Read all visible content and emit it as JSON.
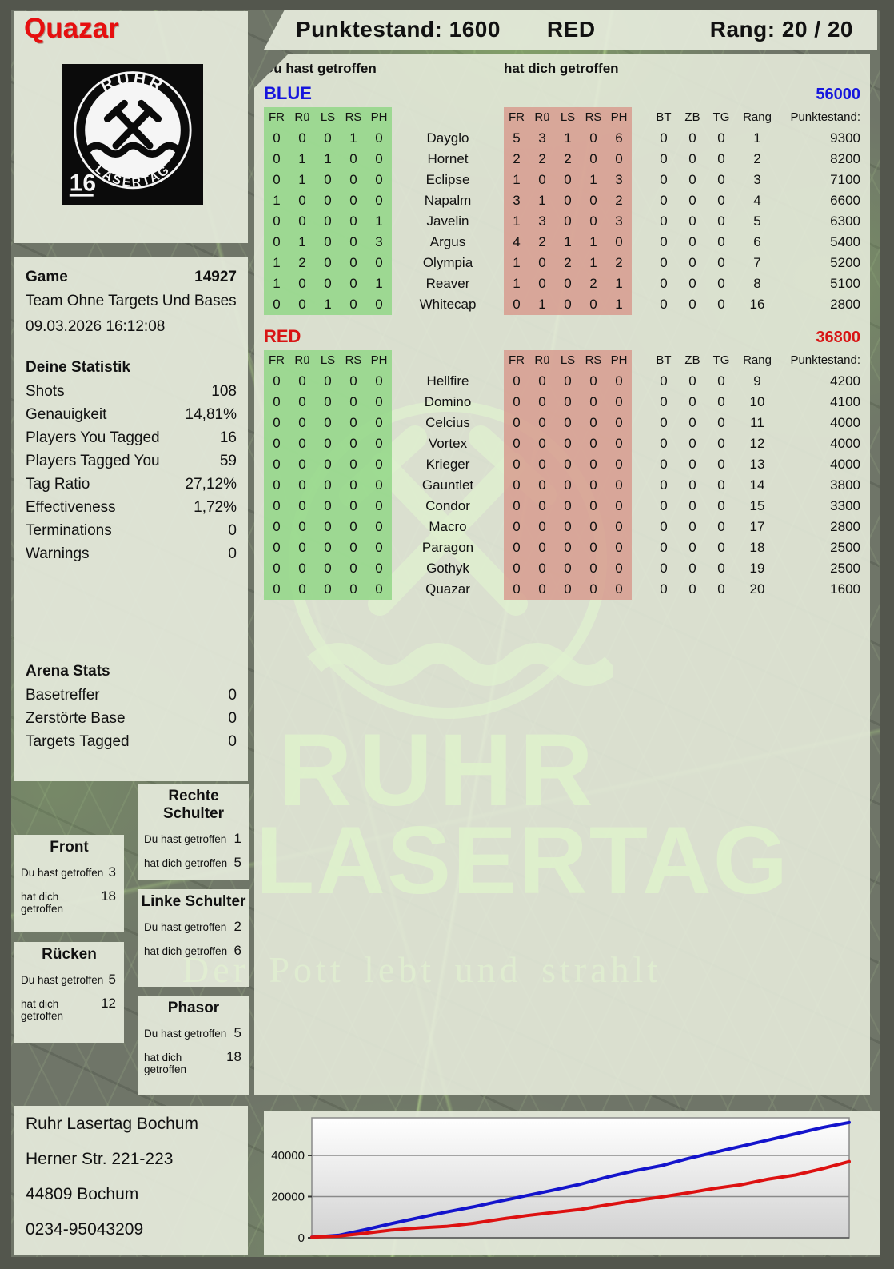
{
  "header": {
    "player": "Quazar",
    "punktestand": "Punktestand: 1600",
    "team": "RED",
    "rang": "Rang: 20 / 20"
  },
  "logo": {
    "arc_top": "RUHR",
    "arc_bottom": "LASERTAG",
    "badge": "16"
  },
  "table": {
    "you_hit_label": "Du hast getroffen",
    "hit_you_label": "hat dich getroffen",
    "hit_columns": [
      "FR",
      "Rü",
      "LS",
      "RS",
      "PH"
    ],
    "extra_columns": [
      "BT",
      "ZB",
      "TG",
      "Rang",
      "Punktestand:"
    ]
  },
  "teams": [
    {
      "name": "BLUE",
      "score": "56000",
      "color": "#1616dd",
      "players": [
        {
          "name": "Dayglo",
          "you": [
            0,
            0,
            0,
            1,
            0
          ],
          "them": [
            5,
            3,
            1,
            0,
            6
          ],
          "bt": 0,
          "zb": 0,
          "tg": 0,
          "rang": 1,
          "punkte": 9300
        },
        {
          "name": "Hornet",
          "you": [
            0,
            1,
            1,
            0,
            0
          ],
          "them": [
            2,
            2,
            2,
            0,
            0
          ],
          "bt": 0,
          "zb": 0,
          "tg": 0,
          "rang": 2,
          "punkte": 8200
        },
        {
          "name": "Eclipse",
          "you": [
            0,
            1,
            0,
            0,
            0
          ],
          "them": [
            1,
            0,
            0,
            1,
            3
          ],
          "bt": 0,
          "zb": 0,
          "tg": 0,
          "rang": 3,
          "punkte": 7100
        },
        {
          "name": "Napalm",
          "you": [
            1,
            0,
            0,
            0,
            0
          ],
          "them": [
            3,
            1,
            0,
            0,
            2
          ],
          "bt": 0,
          "zb": 0,
          "tg": 0,
          "rang": 4,
          "punkte": 6600
        },
        {
          "name": "Javelin",
          "you": [
            0,
            0,
            0,
            0,
            1
          ],
          "them": [
            1,
            3,
            0,
            0,
            3
          ],
          "bt": 0,
          "zb": 0,
          "tg": 0,
          "rang": 5,
          "punkte": 6300
        },
        {
          "name": "Argus",
          "you": [
            0,
            1,
            0,
            0,
            3
          ],
          "them": [
            4,
            2,
            1,
            1,
            0
          ],
          "bt": 0,
          "zb": 0,
          "tg": 0,
          "rang": 6,
          "punkte": 5400
        },
        {
          "name": "Olympia",
          "you": [
            1,
            2,
            0,
            0,
            0
          ],
          "them": [
            1,
            0,
            2,
            1,
            2
          ],
          "bt": 0,
          "zb": 0,
          "tg": 0,
          "rang": 7,
          "punkte": 5200
        },
        {
          "name": "Reaver",
          "you": [
            1,
            0,
            0,
            0,
            1
          ],
          "them": [
            1,
            0,
            0,
            2,
            1
          ],
          "bt": 0,
          "zb": 0,
          "tg": 0,
          "rang": 8,
          "punkte": 5100
        },
        {
          "name": "Whitecap",
          "you": [
            0,
            0,
            1,
            0,
            0
          ],
          "them": [
            0,
            1,
            0,
            0,
            1
          ],
          "bt": 0,
          "zb": 0,
          "tg": 0,
          "rang": 16,
          "punkte": 2800
        }
      ]
    },
    {
      "name": "RED",
      "score": "36800",
      "color": "#d81414",
      "players": [
        {
          "name": "Hellfire",
          "you": [
            0,
            0,
            0,
            0,
            0
          ],
          "them": [
            0,
            0,
            0,
            0,
            0
          ],
          "bt": 0,
          "zb": 0,
          "tg": 0,
          "rang": 9,
          "punkte": 4200
        },
        {
          "name": "Domino",
          "you": [
            0,
            0,
            0,
            0,
            0
          ],
          "them": [
            0,
            0,
            0,
            0,
            0
          ],
          "bt": 0,
          "zb": 0,
          "tg": 0,
          "rang": 10,
          "punkte": 4100
        },
        {
          "name": "Celcius",
          "you": [
            0,
            0,
            0,
            0,
            0
          ],
          "them": [
            0,
            0,
            0,
            0,
            0
          ],
          "bt": 0,
          "zb": 0,
          "tg": 0,
          "rang": 11,
          "punkte": 4000
        },
        {
          "name": "Vortex",
          "you": [
            0,
            0,
            0,
            0,
            0
          ],
          "them": [
            0,
            0,
            0,
            0,
            0
          ],
          "bt": 0,
          "zb": 0,
          "tg": 0,
          "rang": 12,
          "punkte": 4000
        },
        {
          "name": "Krieger",
          "you": [
            0,
            0,
            0,
            0,
            0
          ],
          "them": [
            0,
            0,
            0,
            0,
            0
          ],
          "bt": 0,
          "zb": 0,
          "tg": 0,
          "rang": 13,
          "punkte": 4000
        },
        {
          "name": "Gauntlet",
          "you": [
            0,
            0,
            0,
            0,
            0
          ],
          "them": [
            0,
            0,
            0,
            0,
            0
          ],
          "bt": 0,
          "zb": 0,
          "tg": 0,
          "rang": 14,
          "punkte": 3800
        },
        {
          "name": "Condor",
          "you": [
            0,
            0,
            0,
            0,
            0
          ],
          "them": [
            0,
            0,
            0,
            0,
            0
          ],
          "bt": 0,
          "zb": 0,
          "tg": 0,
          "rang": 15,
          "punkte": 3300
        },
        {
          "name": "Macro",
          "you": [
            0,
            0,
            0,
            0,
            0
          ],
          "them": [
            0,
            0,
            0,
            0,
            0
          ],
          "bt": 0,
          "zb": 0,
          "tg": 0,
          "rang": 17,
          "punkte": 2800
        },
        {
          "name": "Paragon",
          "you": [
            0,
            0,
            0,
            0,
            0
          ],
          "them": [
            0,
            0,
            0,
            0,
            0
          ],
          "bt": 0,
          "zb": 0,
          "tg": 0,
          "rang": 18,
          "punkte": 2500
        },
        {
          "name": "Gothyk",
          "you": [
            0,
            0,
            0,
            0,
            0
          ],
          "them": [
            0,
            0,
            0,
            0,
            0
          ],
          "bt": 0,
          "zb": 0,
          "tg": 0,
          "rang": 19,
          "punkte": 2500
        },
        {
          "name": "Quazar",
          "you": [
            0,
            0,
            0,
            0,
            0
          ],
          "them": [
            0,
            0,
            0,
            0,
            0
          ],
          "bt": 0,
          "zb": 0,
          "tg": 0,
          "rang": 20,
          "punkte": 1600
        }
      ]
    }
  ],
  "sidebar": {
    "game_label": "Game",
    "game_id": "14927",
    "game_mode": "Team Ohne Targets Und Bases",
    "game_date": "09.03.2026 16:12:08",
    "stats_title": "Deine Statistik",
    "stats": [
      {
        "label": "Shots",
        "value": "108"
      },
      {
        "label": "Genauigkeit",
        "value": "14,81%"
      },
      {
        "label": "Players You Tagged",
        "value": "16"
      },
      {
        "label": "Players Tagged You",
        "value": "59"
      },
      {
        "label": "Tag Ratio",
        "value": "27,12%"
      },
      {
        "label": "Effectiveness",
        "value": "1,72%"
      },
      {
        "label": "Terminations",
        "value": "0"
      },
      {
        "label": "Warnings",
        "value": "0"
      }
    ],
    "arena_title": "Arena Stats",
    "arena": [
      {
        "label": "Basetreffer",
        "value": "0"
      },
      {
        "label": "Zerstörte Base",
        "value": "0"
      },
      {
        "label": "Targets Tagged",
        "value": "0"
      }
    ]
  },
  "bodyparts": {
    "you_label": "Du hast getroffen",
    "them_label": "hat dich getroffen",
    "panels": [
      {
        "id": "bp-rechte",
        "title": "Rechte Schulter",
        "you": "1",
        "them": "5"
      },
      {
        "id": "bp-front",
        "title": "Front",
        "you": "3",
        "them": "18"
      },
      {
        "id": "bp-linke",
        "title": "Linke Schulter",
        "you": "2",
        "them": "6"
      },
      {
        "id": "bp-ruecken",
        "title": "Rücken",
        "you": "5",
        "them": "12"
      },
      {
        "id": "bp-phasor",
        "title": "Phasor",
        "you": "5",
        "them": "18"
      }
    ]
  },
  "address": [
    "Ruhr Lasertag Bochum",
    "Herner Str. 221-223",
    "44809 Bochum",
    "0234-95043209"
  ],
  "watermark": {
    "line1": "RUHR",
    "line2": "LASERTAG",
    "slogan": "Der Pott lebt und strahlt"
  },
  "chart_data": {
    "type": "line",
    "title": "",
    "xlabel": "",
    "ylabel": "",
    "ylim": [
      0,
      58000
    ],
    "yticks": [
      0,
      20000,
      40000
    ],
    "grid": true,
    "legend": "none",
    "series": [
      {
        "name": "BLUE team score",
        "color": "#1414cc",
        "values": [
          300,
          1200,
          4000,
          7000,
          9800,
          12500,
          15000,
          17800,
          20500,
          23200,
          26000,
          29500,
          32500,
          35000,
          38500,
          41500,
          44500,
          47500,
          50500,
          53500,
          56000
        ]
      },
      {
        "name": "RED team score",
        "color": "#dd1111",
        "values": [
          300,
          800,
          2200,
          3800,
          4800,
          5500,
          7000,
          9000,
          10800,
          12300,
          13800,
          16000,
          18000,
          19800,
          21800,
          24000,
          25800,
          28500,
          30500,
          33500,
          37000
        ]
      }
    ]
  }
}
